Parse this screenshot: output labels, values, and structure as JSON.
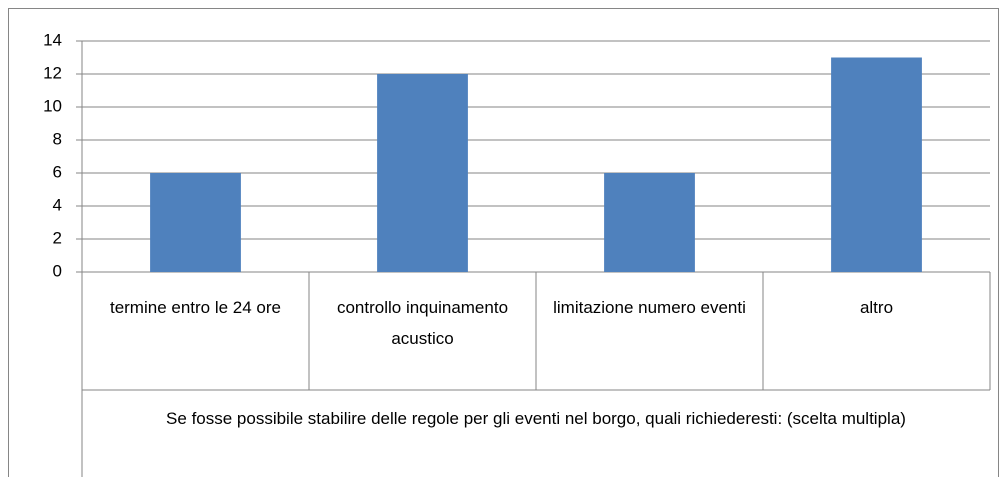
{
  "chart_data": {
    "type": "bar",
    "categories": [
      "termine entro le 24 ore",
      "controllo inquinamento acustico",
      "limitazione numero eventi",
      "altro"
    ],
    "values": [
      6,
      12,
      6,
      13
    ],
    "color": "#4f81bd",
    "x_label": "Se fosse possibile stabilire delle regole per gli eventi nel borgo, quali richiederesti: (scelta multipla)",
    "ylim": [
      0,
      14
    ],
    "yticks": [
      0,
      2,
      4,
      6,
      8,
      10,
      12,
      14
    ],
    "grid": true
  }
}
